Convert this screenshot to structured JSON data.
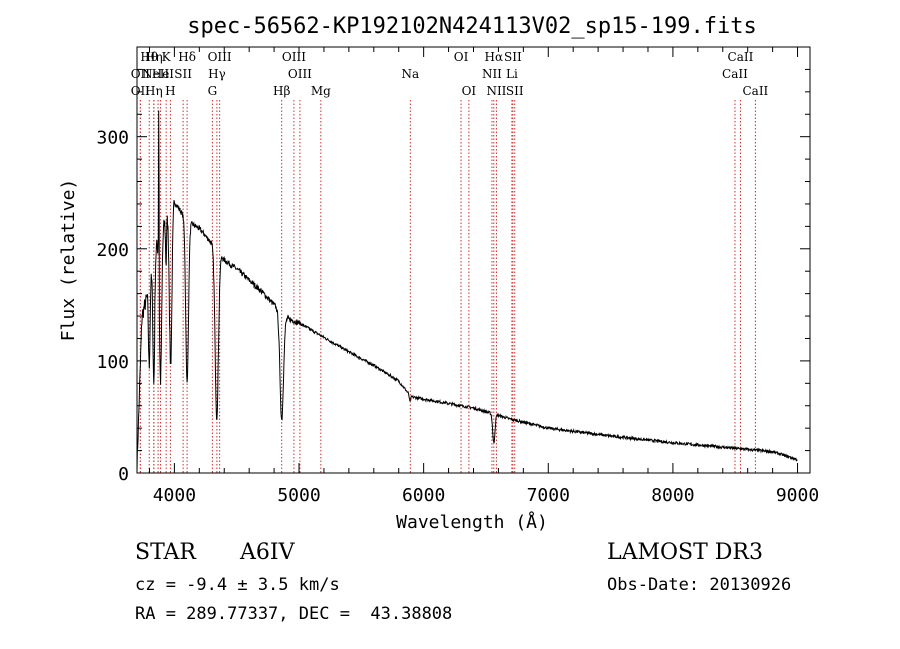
{
  "chart_data": {
    "type": "line",
    "title": "spec-56562-KP192102N424113V02_sp15-199.fits",
    "xlabel": "Wavelength (Å)",
    "ylabel": "Flux (relative)",
    "xlim": [
      3700,
      9100
    ],
    "ylim": [
      0,
      380
    ],
    "xticks": [
      4000,
      5000,
      6000,
      7000,
      8000,
      9000
    ],
    "yticks": [
      0,
      100,
      200,
      300
    ],
    "continuum": [
      [
        3700,
        5
      ],
      [
        3740,
        140
      ],
      [
        3800,
        165
      ],
      [
        3850,
        200
      ],
      [
        3950,
        232
      ],
      [
        4000,
        242
      ],
      [
        4100,
        225
      ],
      [
        4200,
        218
      ],
      [
        4300,
        205
      ],
      [
        4400,
        190
      ],
      [
        4500,
        182
      ],
      [
        4600,
        172
      ],
      [
        4700,
        162
      ],
      [
        4800,
        150
      ],
      [
        4900,
        138
      ],
      [
        5000,
        134
      ],
      [
        5200,
        121
      ],
      [
        5400,
        108
      ],
      [
        5600,
        96
      ],
      [
        5800,
        82
      ],
      [
        5900,
        68
      ],
      [
        6000,
        66
      ],
      [
        6200,
        62
      ],
      [
        6400,
        58
      ],
      [
        6550,
        53
      ],
      [
        6700,
        48
      ],
      [
        7000,
        40
      ],
      [
        7500,
        33
      ],
      [
        8000,
        27
      ],
      [
        8500,
        22
      ],
      [
        8800,
        19
      ],
      [
        9000,
        12
      ]
    ],
    "absorption": [
      {
        "center": 3798,
        "depth": 70,
        "width": 6
      },
      {
        "center": 3835,
        "depth": 110,
        "width": 7
      },
      {
        "center": 3889,
        "depth": 130,
        "width": 9
      },
      {
        "center": 3933,
        "depth": 40,
        "width": 4
      },
      {
        "center": 3970,
        "depth": 140,
        "width": 10
      },
      {
        "center": 4102,
        "depth": 145,
        "width": 11
      },
      {
        "center": 4340,
        "depth": 150,
        "width": 13
      },
      {
        "center": 4861,
        "depth": 95,
        "width": 14
      },
      {
        "center": 5890,
        "depth": 6,
        "width": 5
      },
      {
        "center": 6563,
        "depth": 26,
        "width": 9
      }
    ],
    "emission": [
      {
        "center": 3875,
        "height": 170,
        "width": 2
      }
    ],
    "spectral_lines": [
      {
        "label": "Hθ",
        "wavelength": 3798,
        "row": 0
      },
      {
        "label": "OII",
        "wavelength": 3727,
        "row": 1
      },
      {
        "label": "OII",
        "wavelength": 3727,
        "row": 2
      },
      {
        "label": "Hη",
        "wavelength": 3835,
        "row": 0
      },
      {
        "label": "He",
        "wavelength": 3889,
        "row": 1
      },
      {
        "label": "Hη",
        "wavelength": 3835,
        "row": 2
      },
      {
        "label": "K",
        "wavelength": 3934,
        "row": 0
      },
      {
        "label": "NeIII",
        "wavelength": 3869,
        "row": 1
      },
      {
        "label": "H",
        "wavelength": 3968,
        "row": 2
      },
      {
        "label": "SII",
        "wavelength": 4070,
        "row": 1
      },
      {
        "label": "Hδ",
        "wavelength": 4102,
        "row": 0
      },
      {
        "label": "OIII",
        "wavelength": 4363,
        "row": 0
      },
      {
        "label": "Hγ",
        "wavelength": 4341,
        "row": 1
      },
      {
        "label": "G",
        "wavelength": 4305,
        "row": 2
      },
      {
        "label": "Hβ",
        "wavelength": 4861,
        "row": 2
      },
      {
        "label": "OIII",
        "wavelength": 4959,
        "row": 0
      },
      {
        "label": "OIII",
        "wavelength": 5007,
        "row": 1
      },
      {
        "label": "Mg",
        "wavelength": 5175,
        "row": 2
      },
      {
        "label": "Na",
        "wavelength": 5893,
        "row": 1
      },
      {
        "label": "OI",
        "wavelength": 6300,
        "row": 0
      },
      {
        "label": "OI",
        "wavelength": 6363,
        "row": 2
      },
      {
        "label": "Hα",
        "wavelength": 6563,
        "row": 0
      },
      {
        "label": "NII",
        "wavelength": 6548,
        "row": 1
      },
      {
        "label": "NII",
        "wavelength": 6584,
        "row": 2
      },
      {
        "label": "SII",
        "wavelength": 6716,
        "row": 0
      },
      {
        "label": "Li",
        "wavelength": 6708,
        "row": 1
      },
      {
        "label": "SII",
        "wavelength": 6731,
        "row": 2
      },
      {
        "label": "CaII",
        "wavelength": 8542,
        "row": 0
      },
      {
        "label": "CaII",
        "wavelength": 8498,
        "row": 1
      },
      {
        "label": "CaII",
        "wavelength": 8662,
        "row": 2
      }
    ]
  },
  "info": {
    "object_class": "STAR",
    "subclass": "A6IV",
    "cz": "cz = -9.4 ± 3.5 km/s",
    "coords": "RA = 289.77337, DEC =  43.38808",
    "survey": "LAMOST DR3",
    "obs_date": "Obs-Date: 20130926"
  }
}
